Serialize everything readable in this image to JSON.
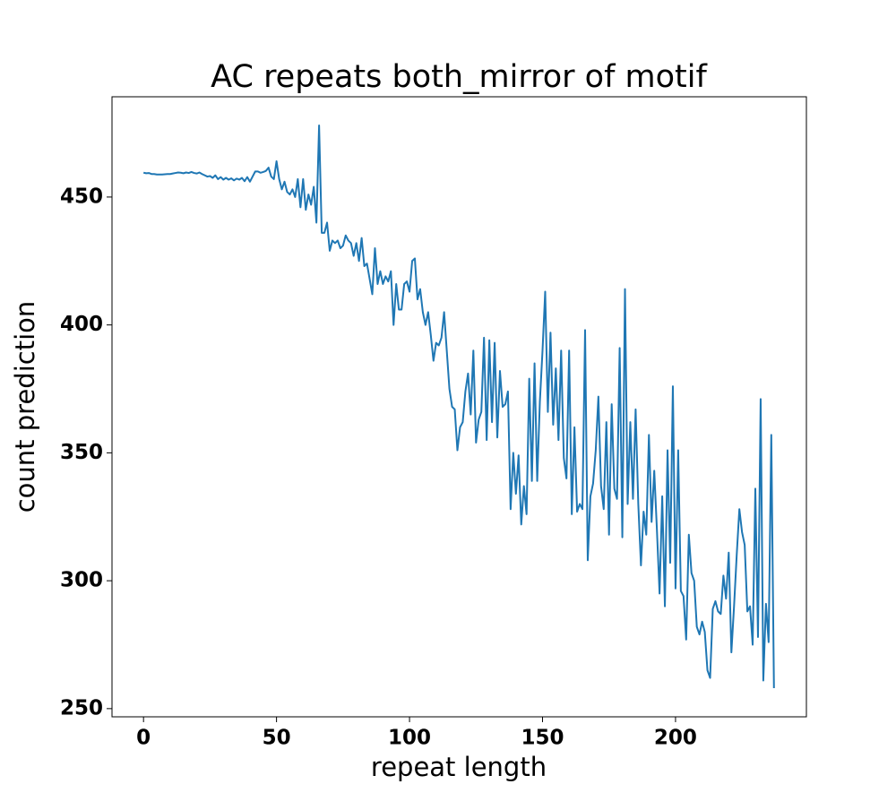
{
  "chart_data": {
    "type": "line",
    "title": "AC repeats both_mirror of motif",
    "x_label": "repeat length",
    "y_label": "count prediction",
    "x": [
      0,
      1,
      2,
      3,
      4,
      5,
      6,
      7,
      8,
      9,
      10,
      11,
      12,
      13,
      14,
      15,
      16,
      17,
      18,
      19,
      20,
      21,
      22,
      23,
      24,
      25,
      26,
      27,
      28,
      29,
      30,
      31,
      32,
      33,
      34,
      35,
      36,
      37,
      38,
      39,
      40,
      41,
      42,
      43,
      44,
      45,
      46,
      47,
      48,
      49,
      50,
      51,
      52,
      53,
      54,
      55,
      56,
      57,
      58,
      59,
      60,
      61,
      62,
      63,
      64,
      65,
      66,
      67,
      68,
      69,
      70,
      71,
      72,
      73,
      74,
      75,
      76,
      77,
      78,
      79,
      80,
      81,
      82,
      83,
      84,
      85,
      86,
      87,
      88,
      89,
      90,
      91,
      92,
      93,
      94,
      95,
      96,
      97,
      98,
      99,
      100,
      101,
      102,
      103,
      104,
      105,
      106,
      107,
      108,
      109,
      110,
      111,
      112,
      113,
      114,
      115,
      116,
      117,
      118,
      119,
      120,
      121,
      122,
      123,
      124,
      125,
      126,
      127,
      128,
      129,
      130,
      131,
      132,
      133,
      134,
      135,
      136,
      137,
      138,
      139,
      140,
      141,
      142,
      143,
      144,
      145,
      146,
      147,
      148,
      149,
      150,
      151,
      152,
      153,
      154,
      155,
      156,
      157,
      158,
      159,
      160,
      161,
      162,
      163,
      164,
      165,
      166,
      167,
      168,
      169,
      170,
      171,
      172,
      173,
      174,
      175,
      176,
      177,
      178,
      179,
      180,
      181,
      182,
      183,
      184,
      185,
      186,
      187,
      188,
      189,
      190,
      191,
      192,
      193,
      194,
      195,
      196,
      197,
      198,
      199,
      200,
      201,
      202,
      203,
      204,
      205,
      206,
      207,
      208,
      209,
      210,
      211,
      212,
      213,
      214,
      215,
      216,
      217,
      218,
      219,
      220,
      221,
      222,
      223,
      224,
      225,
      226,
      227,
      228,
      229,
      230,
      231,
      232,
      233,
      234,
      235,
      236,
      237
    ],
    "series": [
      {
        "color": "#1f77b4",
        "values": [
          459.5,
          459.3,
          459.4,
          459,
          459,
          458.8,
          458.8,
          458.8,
          458.9,
          459,
          459,
          459.2,
          459.4,
          459.6,
          459.5,
          459.3,
          459.6,
          459.4,
          459.8,
          459.4,
          459.2,
          459.6,
          459,
          458.5,
          458,
          458.2,
          457.5,
          458.5,
          457,
          457.8,
          456.8,
          457.5,
          456.8,
          457.3,
          456.5,
          457.2,
          456.8,
          457.5,
          456.2,
          457.8,
          456,
          458,
          460,
          460,
          459.5,
          459.8,
          460.2,
          461.5,
          458,
          457,
          464,
          457,
          453,
          456,
          452,
          451,
          453,
          450,
          457,
          446,
          457,
          445,
          451,
          447,
          454,
          440,
          478,
          436,
          436,
          440,
          429,
          433,
          432,
          433,
          430,
          431,
          435,
          433,
          432,
          427,
          432,
          425,
          434,
          423,
          424,
          418,
          412,
          430,
          416,
          421,
          416,
          419,
          417,
          421,
          400,
          416,
          406,
          406,
          416,
          417,
          413,
          425,
          426,
          410,
          414,
          405,
          400,
          405,
          396,
          386,
          393,
          392,
          395,
          405,
          390,
          375,
          368,
          367,
          351,
          360,
          362,
          374,
          381,
          365,
          390,
          354,
          363,
          366,
          395,
          355,
          394,
          362,
          393,
          356,
          382,
          368,
          369,
          374,
          328,
          350,
          334,
          349,
          322,
          337,
          326,
          379,
          339,
          385,
          339,
          370,
          390,
          413,
          366,
          397,
          361,
          383,
          355,
          390,
          348,
          340,
          390,
          326,
          360,
          327,
          330,
          328,
          398,
          308,
          333,
          338,
          351,
          372,
          337,
          328,
          362,
          318,
          369,
          336,
          332,
          391,
          317,
          414,
          330,
          362,
          332,
          367,
          330,
          306,
          327,
          318,
          357,
          323,
          343,
          320,
          295,
          333,
          290,
          351,
          307,
          376,
          297,
          351,
          296,
          294,
          277,
          318,
          303,
          300,
          282,
          279,
          284,
          280,
          265,
          262,
          289,
          292,
          288,
          287,
          302,
          293,
          311,
          272,
          290,
          310,
          328,
          319,
          314,
          288,
          290,
          275,
          336,
          278,
          371,
          261,
          291,
          276,
          357,
          258
        ]
      }
    ],
    "xlim": [
      -11.85,
      249.2
    ],
    "ylim": [
      246.8,
      489.2
    ],
    "xticks": [
      0,
      50,
      100,
      150,
      200
    ],
    "yticks": [
      250,
      300,
      350,
      400,
      450
    ]
  }
}
